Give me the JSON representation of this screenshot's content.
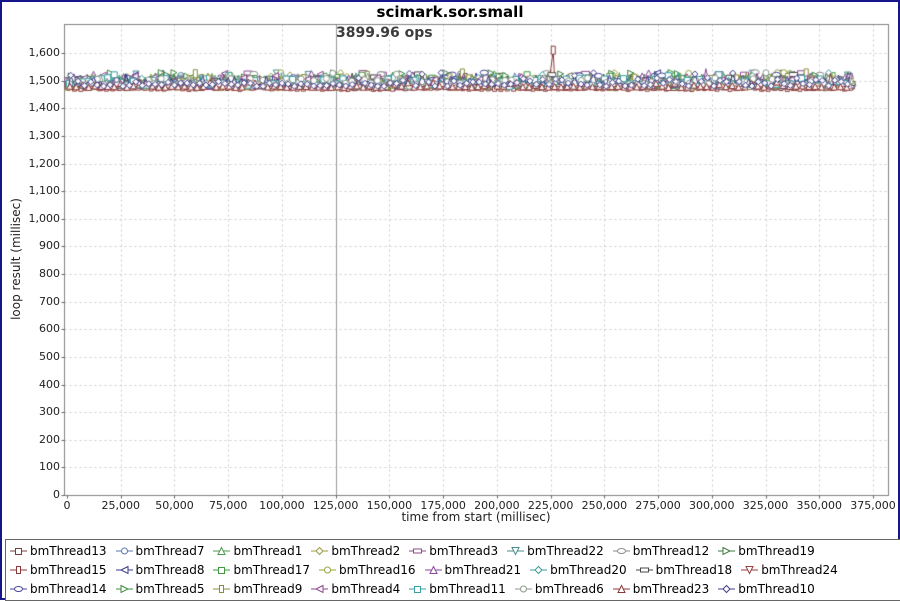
{
  "colors": {
    "window_border": "#16168b",
    "plot_frame": "#808080",
    "grid": "#cccccc",
    "marker_line": "#999999",
    "tick": "#666666",
    "annotation_text": "#3c3c3c"
  },
  "chart_data": {
    "type": "line",
    "title": "scimark.sor.small",
    "xlabel": "time from start (millisec)",
    "ylabel": "loop result (millisec)",
    "annotation": {
      "text": "3899.96 ops",
      "x": 125000,
      "y": 1680
    },
    "marker_line_x": 125000,
    "xlim": [
      0,
      381800
    ],
    "ylim": [
      0,
      1705
    ],
    "x_ticks": [
      0,
      25000,
      50000,
      75000,
      100000,
      125000,
      150000,
      175000,
      200000,
      225000,
      250000,
      275000,
      300000,
      325000,
      350000,
      375000
    ],
    "x_tick_labels": [
      "0",
      "25,000",
      "50,000",
      "75,000",
      "100,000",
      "125,000",
      "150,000",
      "175,000",
      "200,000",
      "225,000",
      "250,000",
      "275,000",
      "300,000",
      "325,000",
      "350,000",
      "375,000"
    ],
    "y_ticks": [
      0,
      100,
      200,
      300,
      400,
      500,
      600,
      700,
      800,
      900,
      1000,
      1100,
      1200,
      1300,
      1400,
      1500,
      1600
    ],
    "y_tick_labels": [
      "0",
      "100",
      "200",
      "300",
      "400",
      "500",
      "600",
      "700",
      "800",
      "900",
      "1,000",
      "1,100",
      "1,200",
      "1,300",
      "1,400",
      "1,500",
      "1,600"
    ],
    "grid": true,
    "legend_position": "bottom",
    "x_data_max": 365000,
    "point_spacing_ms": 1480,
    "baseline_ms": 1477,
    "band_range_ms": [
      1477,
      1531
    ],
    "seed": 1337,
    "series": [
      {
        "name": "bmThread13",
        "color": "#7d3c3c",
        "shape": "square",
        "dense_low": true
      },
      {
        "name": "bmThread7",
        "color": "#5a7ab0",
        "shape": "circle",
        "dense_low": false
      },
      {
        "name": "bmThread1",
        "color": "#4e9a4e",
        "shape": "triangle-up",
        "dense_low": false
      },
      {
        "name": "bmThread2",
        "color": "#9a9a46",
        "shape": "diamond",
        "dense_low": false
      },
      {
        "name": "bmThread3",
        "color": "#8d4a8d",
        "shape": "rect-h",
        "dense_low": false
      },
      {
        "name": "bmThread22",
        "color": "#4a8d8d",
        "shape": "triangle-down",
        "dense_low": false
      },
      {
        "name": "bmThread12",
        "color": "#8a8a8a",
        "shape": "ellipse-h",
        "dense_low": false
      },
      {
        "name": "bmThread19",
        "color": "#3d7a3d",
        "shape": "triangle-right",
        "dense_low": false
      },
      {
        "name": "bmThread15",
        "color": "#8d3a3a",
        "shape": "rect-v",
        "dense_low": true
      },
      {
        "name": "bmThread8",
        "color": "#3a3a8d",
        "shape": "triangle-left",
        "dense_low": false
      },
      {
        "name": "bmThread17",
        "color": "#3f9a3f",
        "shape": "square",
        "dense_low": false
      },
      {
        "name": "bmThread16",
        "color": "#97a43f",
        "shape": "circle",
        "dense_low": false
      },
      {
        "name": "bmThread21",
        "color": "#8d46a0",
        "shape": "triangle-up",
        "dense_low": false
      },
      {
        "name": "bmThread20",
        "color": "#3f9a9a",
        "shape": "diamond",
        "dense_low": false
      },
      {
        "name": "bmThread18",
        "color": "#4a4a4a",
        "shape": "rect-h",
        "dense_low": false
      },
      {
        "name": "bmThread24",
        "color": "#9a3f3f",
        "shape": "triangle-down",
        "dense_low": true
      },
      {
        "name": "bmThread14",
        "color": "#46469a",
        "shape": "ellipse-h",
        "dense_low": false
      },
      {
        "name": "bmThread5",
        "color": "#3f8d3f",
        "shape": "triangle-right",
        "dense_low": false
      },
      {
        "name": "bmThread9",
        "color": "#8d8d3f",
        "shape": "rect-v",
        "dense_low": false
      },
      {
        "name": "bmThread4",
        "color": "#8d468d",
        "shape": "triangle-left",
        "dense_low": false
      },
      {
        "name": "bmThread11",
        "color": "#38a0a0",
        "shape": "square",
        "dense_low": false
      },
      {
        "name": "bmThread6",
        "color": "#8a9a8a",
        "shape": "circle",
        "dense_low": false
      },
      {
        "name": "bmThread23",
        "color": "#8d3838",
        "shape": "triangle-up",
        "dense_low": true
      },
      {
        "name": "bmThread10",
        "color": "#3f3f8d",
        "shape": "diamond",
        "dense_low": false
      }
    ],
    "outliers": [
      {
        "series": "bmThread15",
        "x": 226000,
        "y": 1612
      },
      {
        "series": "bmThread21",
        "x": 113500,
        "y": 1527
      },
      {
        "series": "bmThread11",
        "x": 118000,
        "y": 1524
      },
      {
        "series": "bmThread1",
        "x": 115000,
        "y": 1526
      },
      {
        "series": "bmThread4",
        "x": 297000,
        "y": 1545
      },
      {
        "series": "bmThread16",
        "x": 289000,
        "y": 1528
      },
      {
        "series": "bmThread12",
        "x": 320000,
        "y": 1532
      },
      {
        "series": "bmThread7",
        "x": 208000,
        "y": 1530
      },
      {
        "series": "bmThread10",
        "x": 1500,
        "y": 1521
      },
      {
        "series": "bmThread19",
        "x": 176000,
        "y": 1530
      },
      {
        "series": "bmThread3",
        "x": 241000,
        "y": 1528
      },
      {
        "series": "bmThread23",
        "x": 355000,
        "y": 1528
      }
    ]
  }
}
